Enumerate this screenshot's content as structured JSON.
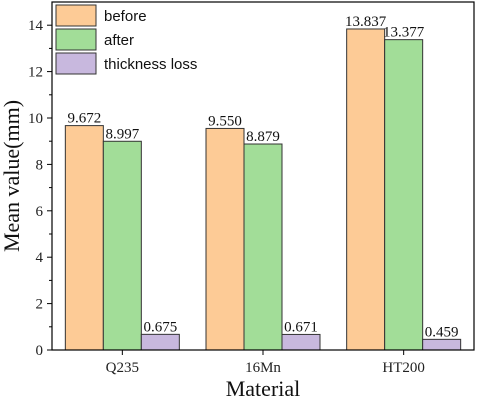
{
  "chart_data": {
    "type": "bar",
    "title": "",
    "xlabel": "Material",
    "ylabel": "Mean value(mm)",
    "categories": [
      "Q235",
      "16Mn",
      "HT200"
    ],
    "series": [
      {
        "name": "before",
        "color": "#FDCB96",
        "values": [
          9.672,
          9.55,
          13.837
        ],
        "labels": [
          "9.672",
          "9.550",
          "13.837"
        ]
      },
      {
        "name": "after",
        "color": "#A2DD98",
        "values": [
          8.997,
          8.879,
          13.377
        ],
        "labels": [
          "8.997",
          "8.879",
          "13.377"
        ]
      },
      {
        "name": "thickness loss",
        "color": "#C8B8DE",
        "values": [
          0.675,
          0.671,
          0.459
        ],
        "labels": [
          "0.675",
          "0.671",
          "0.459"
        ]
      }
    ],
    "ylim": [
      0,
      15
    ],
    "yticks": [
      0,
      2,
      4,
      6,
      8,
      10,
      12,
      14
    ],
    "grid": false,
    "legend": "top-left"
  }
}
